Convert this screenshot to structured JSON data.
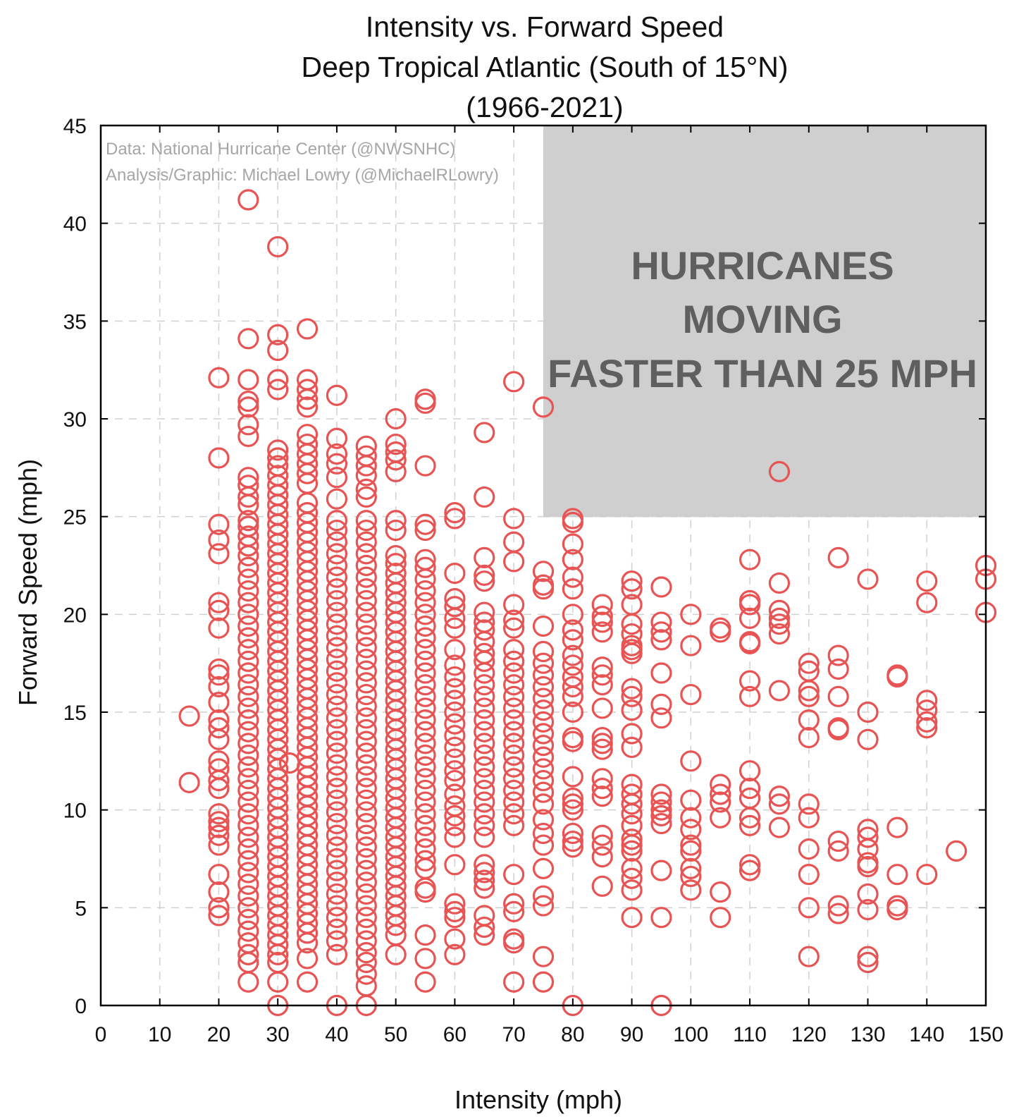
{
  "chart_data": {
    "type": "scatter",
    "title": [
      "Intensity vs. Forward Speed",
      "Deep Tropical Atlantic (South of 15°N)",
      "(1966-2021)"
    ],
    "xlabel": "Intensity (mph)",
    "ylabel": "Forward Speed (mph)",
    "xlim": [
      0,
      150
    ],
    "ylim": [
      0,
      45
    ],
    "xticks": [
      0,
      10,
      20,
      30,
      40,
      50,
      60,
      70,
      80,
      90,
      100,
      110,
      120,
      130,
      140,
      150
    ],
    "yticks": [
      0,
      5,
      10,
      15,
      20,
      25,
      30,
      35,
      40,
      45
    ],
    "grid": true,
    "marker": "open-circle",
    "marker_color": "#e85454",
    "credits": [
      "Data: National Hurricane Center (@NWSNHC)",
      "Analysis/Graphic: Michael Lowry (@MichaelRLowry)"
    ],
    "highlight_region": {
      "x_range": [
        75,
        150
      ],
      "y_range": [
        25,
        45
      ],
      "fill": "#cfcfcf",
      "label_lines": [
        "HURRICANES",
        "MOVING",
        "FASTER THAN 25 MPH"
      ]
    },
    "series": [
      {
        "x": 15,
        "y": [
          14.8,
          11.4
        ]
      },
      {
        "x": 20,
        "y": [
          32.1,
          28,
          24.6,
          23.8,
          23.1,
          20.6,
          20.2,
          19.3,
          17.2,
          16.9,
          16.3,
          15.5,
          14.6,
          14.2,
          13.6,
          12.5,
          12.1,
          11.5,
          11.1,
          9.8,
          9.4,
          9.1,
          8.7,
          8.2,
          6.7,
          5.8,
          5.0,
          4.6
        ]
      },
      {
        "x": 25,
        "y": [
          41.2,
          34.1,
          32,
          30.9,
          30.6,
          29.7,
          29.1,
          27,
          26.6,
          26,
          25.6,
          24.8,
          24.5,
          24,
          23.5,
          23,
          22.4,
          21.8,
          21.2,
          20.6,
          20,
          19.4,
          18.8,
          18.2,
          17.6,
          17,
          16.4,
          15.8,
          15.2,
          14.6,
          14,
          13.4,
          12.8,
          12.2,
          11.6,
          11,
          10.4,
          9.8,
          9.2,
          8.6,
          8,
          7.4,
          6.8,
          6.2,
          5.6,
          5,
          4.4,
          3.8,
          3.2,
          2.6,
          2.2,
          1.2
        ]
      },
      {
        "x": 30,
        "y": [
          38.8,
          34.3,
          33.5,
          32,
          31.5,
          28.4,
          28,
          27.6,
          27.1,
          26.6,
          26.1,
          25.6,
          25.1,
          24.6,
          24.1,
          23.6,
          23.1,
          22.6,
          22.1,
          21.6,
          21.1,
          20.6,
          20.1,
          19.6,
          19.1,
          18.6,
          18.1,
          17.6,
          17.1,
          16.6,
          16.1,
          15.6,
          15.1,
          14.6,
          14.1,
          13.6,
          13.1,
          12.6,
          12.1,
          11.6,
          11.1,
          10.6,
          10.1,
          9.6,
          9.1,
          8.6,
          8.1,
          7.6,
          7.1,
          6.6,
          6.1,
          5.6,
          5.1,
          4.6,
          4.1,
          3.6,
          3.1,
          2.6,
          2.2,
          1.2,
          0
        ]
      },
      {
        "x": 32,
        "y": [
          12.4
        ]
      },
      {
        "x": 35,
        "y": [
          34.6,
          32,
          31.5,
          31,
          30.6,
          29.2,
          28.7,
          28.2,
          27.7,
          27.2,
          26.7,
          25.7,
          25.2,
          24.7,
          24.2,
          23.7,
          23.2,
          22.7,
          22.2,
          21.7,
          21.2,
          20.7,
          20.2,
          19.7,
          19.2,
          18.7,
          18.2,
          17.7,
          17.2,
          16.7,
          16.2,
          15.7,
          15.2,
          14.7,
          14.2,
          13.7,
          13.2,
          12.7,
          12.2,
          11.7,
          11.2,
          10.7,
          10.2,
          9.7,
          9.2,
          8.7,
          8.2,
          7.7,
          7.2,
          6.7,
          6.2,
          5.7,
          5.2,
          4.7,
          4.2,
          3.7,
          3.2,
          2.4,
          1.2
        ]
      },
      {
        "x": 40,
        "y": [
          31.2,
          29,
          28.2,
          27.7,
          27,
          25.9,
          24.8,
          24.3,
          23.7,
          23.1,
          22.5,
          21.9,
          21.3,
          20.7,
          20.1,
          19.5,
          18.9,
          18.3,
          17.7,
          17.1,
          16.5,
          15.9,
          15.3,
          14.7,
          14.1,
          13.5,
          12.9,
          12.3,
          11.7,
          11.1,
          10.5,
          9.9,
          9.3,
          8.7,
          8.1,
          7.5,
          6.9,
          6.3,
          5.7,
          5.1,
          4.5,
          3.9,
          3.3,
          2.6,
          0
        ]
      },
      {
        "x": 45,
        "y": [
          28.6,
          28.1,
          27.6,
          27.1,
          26.4,
          26,
          24.8,
          24.3,
          23.7,
          23.1,
          22.5,
          21.9,
          21.3,
          20.7,
          20.1,
          19.5,
          18.9,
          18.3,
          17.7,
          17.1,
          16.5,
          15.9,
          15.3,
          14.7,
          14.1,
          13.5,
          12.9,
          12.3,
          11.7,
          11.1,
          10.5,
          9.9,
          9.3,
          8.7,
          8.1,
          7.5,
          6.9,
          6.3,
          5.7,
          5.1,
          4.5,
          3.9,
          3.3,
          2.7,
          2.2,
          1.6,
          1.0,
          0
        ]
      },
      {
        "x": 50,
        "y": [
          30,
          28.7,
          28.3,
          27.9,
          27.3,
          24.8,
          24.3,
          23,
          22.6,
          22.1,
          21.6,
          21.1,
          20.6,
          20.1,
          19.6,
          19.1,
          18.6,
          18.1,
          17.6,
          17.1,
          16.6,
          16.1,
          15.6,
          15.1,
          14.6,
          14.1,
          13.6,
          13.1,
          12.6,
          12.1,
          11.6,
          11.1,
          10.6,
          10.1,
          9.6,
          9.1,
          8.6,
          8.1,
          7.6,
          7.1,
          6.6,
          6.1,
          5.6,
          5.1,
          4.6,
          4.1,
          3.6,
          2.6
        ]
      },
      {
        "x": 55,
        "y": [
          31,
          30.8,
          27.6,
          24.6,
          24.3,
          22.8,
          22.4,
          21.8,
          21.2,
          20.6,
          20,
          19.4,
          18.8,
          18.2,
          17.6,
          17,
          16.4,
          15.8,
          15.2,
          14.6,
          14,
          13.4,
          12.8,
          12.2,
          11.6,
          11,
          10.4,
          9.8,
          9.2,
          8.6,
          8,
          7.4,
          7,
          6,
          5.8,
          3.6,
          2.4,
          1.2
        ]
      },
      {
        "x": 60,
        "y": [
          25.2,
          24.9,
          22.1,
          20.8,
          20.4,
          19.8,
          19.3,
          18.2,
          17.4,
          16.8,
          16.2,
          15.6,
          15,
          14.4,
          13.8,
          13.2,
          12.6,
          12,
          11.5,
          10.8,
          10.2,
          9.7,
          9.2,
          8.6,
          7.2,
          5.2,
          4.8,
          4.5,
          3.4,
          2.6
        ]
      },
      {
        "x": 65,
        "y": [
          29.3,
          26,
          22.9,
          22,
          21.7,
          20.1,
          19.6,
          19.2,
          18.6,
          18,
          17.6,
          17,
          16.4,
          15.8,
          15.2,
          14.6,
          14,
          13.4,
          12.8,
          12.2,
          11.6,
          11,
          10.4,
          9.8,
          9.2,
          8.6,
          7.2,
          6.8,
          6.4,
          6,
          4.6,
          4,
          3.6
        ]
      },
      {
        "x": 70,
        "y": [
          31.9,
          24.9,
          23.7,
          22.7,
          20.5,
          19.7,
          19.3,
          18.2,
          17.6,
          17,
          16.4,
          15.8,
          15.2,
          14.6,
          14,
          13.4,
          12.8,
          12.2,
          11.6,
          11,
          10.4,
          9.8,
          9.2,
          6.7,
          5.2,
          4.8,
          3.4,
          3.2,
          1.2
        ]
      },
      {
        "x": 75,
        "y": [
          30.6,
          22.2,
          21.5,
          21.3,
          19.4,
          18.1,
          17.5,
          16.9,
          16.3,
          15.7,
          15.1,
          14.5,
          13.9,
          13.3,
          12.7,
          12.1,
          11.5,
          10.9,
          10.3,
          9.5,
          8.8,
          8.2,
          7,
          5.6,
          5.1,
          2.5,
          1.2
        ]
      },
      {
        "x": 80,
        "y": [
          24.9,
          24.7,
          23.6,
          22.8,
          21.9,
          21.3,
          20,
          19.2,
          18.7,
          17.9,
          17.4,
          16.8,
          16.3,
          15.8,
          15,
          13.7,
          13.5,
          11.7,
          10.6,
          10.3,
          10,
          8.8,
          8.4,
          8.1,
          0
        ]
      },
      {
        "x": 85,
        "y": [
          20.5,
          19.9,
          19.6,
          19.1,
          17.3,
          16.9,
          16.4,
          15.2,
          13.7,
          13.4,
          13.1,
          11.6,
          11.1,
          10.7,
          8.7,
          8.2,
          7.6,
          6.1
        ]
      },
      {
        "x": 90,
        "y": [
          21.7,
          21.3,
          20.5,
          19.5,
          19,
          18.4,
          18.2,
          18,
          16.2,
          15.8,
          15.1,
          13.9,
          13.2,
          11.3,
          10.8,
          10.3,
          9.8,
          9.2,
          8.5,
          8.2,
          7.9,
          7,
          6.5,
          5.9,
          4.5
        ]
      },
      {
        "x": 95,
        "y": [
          21.4,
          19.6,
          19.1,
          18.7,
          17,
          15.4,
          14.7,
          10.8,
          10.4,
          10,
          9.7,
          9.3,
          6.9,
          4.5,
          0
        ]
      },
      {
        "x": 100,
        "y": [
          20,
          18.4,
          15.9,
          12.5,
          10.5,
          9.6,
          9,
          8.2,
          7.9,
          7,
          6.6,
          5.9
        ]
      },
      {
        "x": 105,
        "y": [
          19.3,
          19.1,
          11.3,
          10.8,
          10.4,
          9.6,
          5.8,
          4.5
        ]
      },
      {
        "x": 110,
        "y": [
          22.8,
          20.7,
          20.5,
          19.8,
          18.6,
          18.5,
          16.6,
          15.8,
          12,
          11.1,
          10.6,
          9.6,
          9.2,
          7.2,
          6.9
        ]
      },
      {
        "x": 115,
        "y": [
          27.3,
          21.6,
          20.2,
          19.8,
          19.5,
          19,
          16.1,
          10.7,
          10.3,
          9.1
        ]
      },
      {
        "x": 120,
        "y": [
          17.5,
          17.1,
          16.1,
          15.8,
          14.6,
          13.7,
          10.3,
          9.6,
          8,
          6.7,
          5,
          2.5
        ]
      },
      {
        "x": 125,
        "y": [
          22.9,
          17.9,
          17.2,
          15.8,
          14.2,
          14.1,
          8.4,
          7.9,
          5.1,
          4.7
        ]
      },
      {
        "x": 130,
        "y": [
          21.8,
          15,
          13.6,
          9,
          8.6,
          8,
          7.3,
          7.1,
          5.7,
          4.9,
          2.5,
          2.2
        ]
      },
      {
        "x": 135,
        "y": [
          16.9,
          16.8,
          9.1,
          6.7,
          5.1,
          4.9
        ]
      },
      {
        "x": 140,
        "y": [
          21.7,
          20.6,
          15.6,
          15.1,
          14.5,
          14.2,
          6.7
        ]
      },
      {
        "x": 145,
        "y": [
          7.9
        ]
      },
      {
        "x": 150,
        "y": [
          22.5,
          21.8,
          20.1
        ]
      }
    ]
  }
}
